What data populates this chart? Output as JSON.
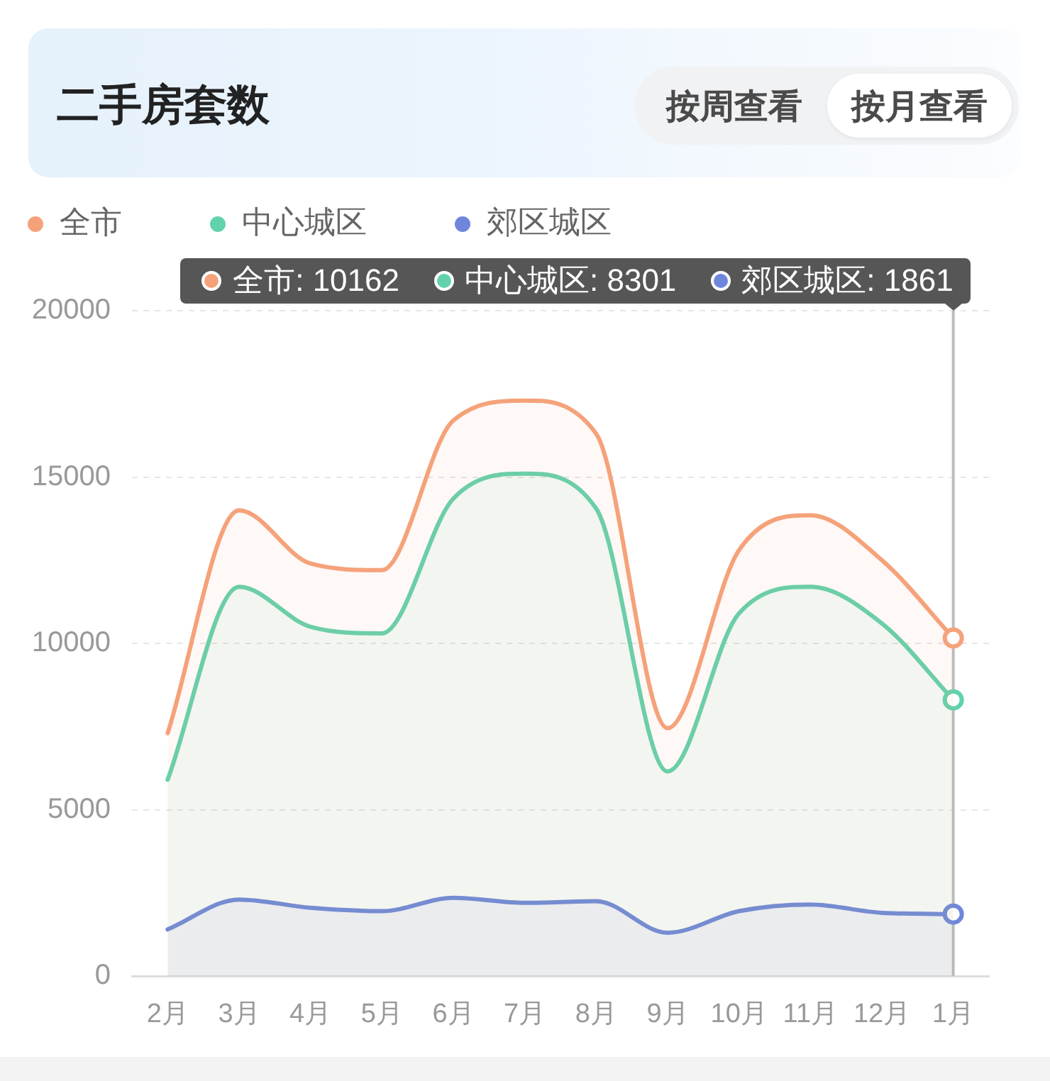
{
  "chart_data": {
    "type": "area",
    "title": "二手房套数",
    "categories": [
      "2月",
      "3月",
      "4月",
      "5月",
      "6月",
      "7月",
      "8月",
      "9月",
      "10月",
      "11月",
      "12月",
      "1月"
    ],
    "series": [
      {
        "name": "全市",
        "color": "#f5a27a",
        "values": [
          7300,
          14000,
          12400,
          12200,
          16700,
          17300,
          16300,
          7450,
          12800,
          13850,
          12500,
          10162
        ]
      },
      {
        "name": "中心城区",
        "color": "#62d2ac",
        "values": [
          5900,
          11700,
          10500,
          10300,
          14350,
          15100,
          14050,
          6150,
          10900,
          11700,
          10600,
          8301
        ]
      },
      {
        "name": "郊区城区",
        "color": "#6e86dc",
        "values": [
          1400,
          2300,
          2050,
          1950,
          2350,
          2200,
          2250,
          1300,
          1950,
          2150,
          1900,
          1861
        ]
      }
    ],
    "ylim": [
      0,
      20000
    ],
    "yticks": [
      0,
      5000,
      10000,
      15000,
      20000
    ],
    "grid": "y",
    "legend": "top left",
    "ref_lines": [
      {
        "axis": "x",
        "value": "1月",
        "color": "#bdbdbd"
      }
    ],
    "annotations": [
      "按周查看",
      "按月查看",
      "全市: 10162",
      "中心城区: 8301",
      "郊区城区: 1861"
    ]
  }
}
